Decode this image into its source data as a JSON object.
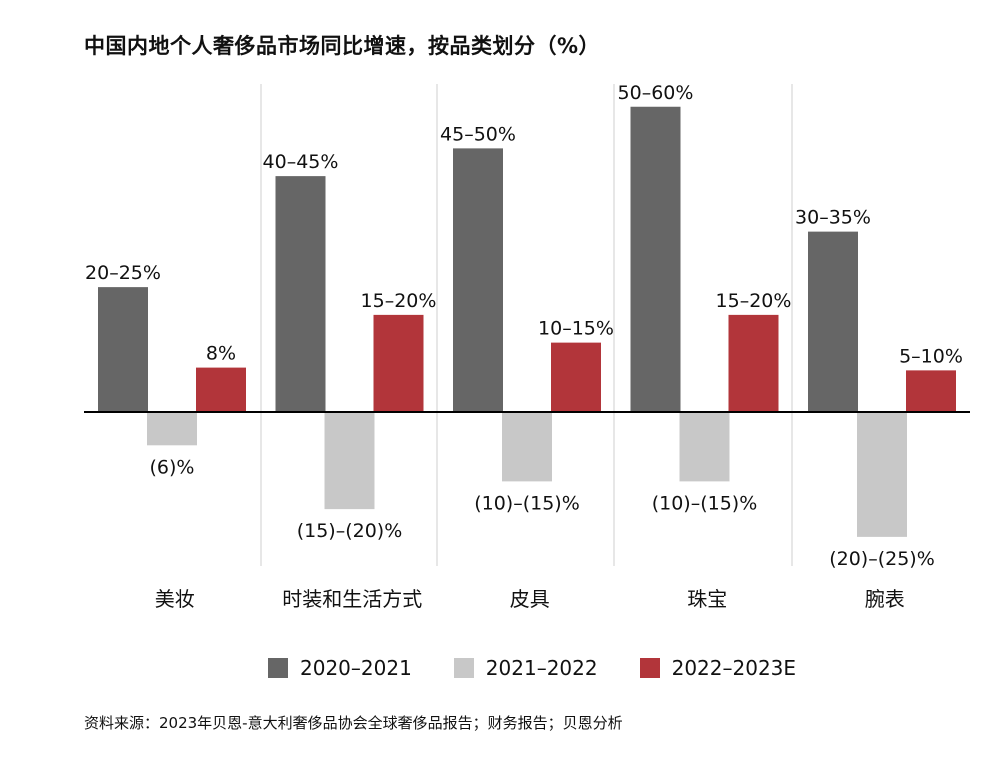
{
  "title": "中国内地个人奢侈品市场同比增速，按品类划分（%）",
  "colors": {
    "s2021": "#666666",
    "s2022": "#c8c8c8",
    "s2023": "#b2353a",
    "axis": "#000000",
    "divider": "#cfcfcf"
  },
  "chart_data": {
    "type": "bar",
    "title": "中国内地个人奢侈品市场同比增速，按品类划分（%）",
    "categories": [
      "美妆",
      "时装和生活方式",
      "皮具",
      "珠宝",
      "腕表"
    ],
    "ylim": [
      -27,
      63
    ],
    "grid": false,
    "legend_position": "bottom",
    "series": [
      {
        "name": "2020–2021",
        "color": "#666666",
        "values": [
          22.5,
          42.5,
          47.5,
          55,
          32.5
        ],
        "labels": [
          "20–25%",
          "40–45%",
          "45–50%",
          "50–60%",
          "30–35%"
        ]
      },
      {
        "name": "2021–2022",
        "color": "#c8c8c8",
        "values": [
          -6,
          -17.5,
          -12.5,
          -12.5,
          -22.5
        ],
        "labels": [
          "(6)%",
          "(15)–(20)%",
          "(10)–(15)%",
          "(10)–(15)%",
          "(20)–(25)%"
        ]
      },
      {
        "name": "2022–2023E",
        "color": "#b2353a",
        "values": [
          8,
          17.5,
          12.5,
          17.5,
          7.5
        ],
        "labels": [
          "8%",
          "15–20%",
          "10–15%",
          "15–20%",
          "5–10%"
        ]
      }
    ]
  },
  "legend": [
    {
      "label": "2020–2021",
      "color": "#666666"
    },
    {
      "label": "2021–2022",
      "color": "#c8c8c8"
    },
    {
      "label": "2022–2023E",
      "color": "#b2353a"
    }
  ],
  "source": "资料来源：2023年贝恩-意大利奢侈品协会全球奢侈品报告；财务报告；贝恩分析"
}
